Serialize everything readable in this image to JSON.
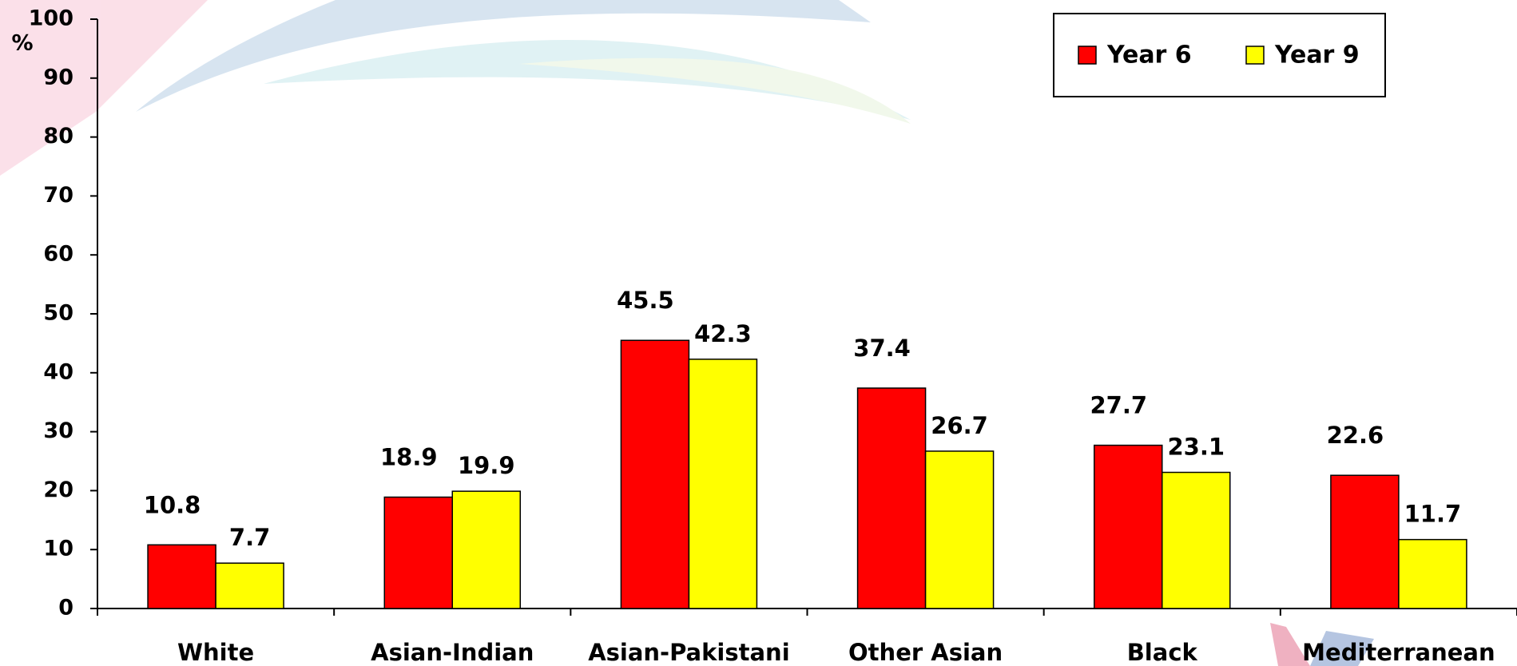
{
  "chart_data": {
    "type": "bar",
    "y_label": "%",
    "categories": [
      "White",
      "Asian-Indian",
      "Asian-Pakistani",
      "Other Asian",
      "Black",
      "Mediterranean"
    ],
    "series": [
      {
        "name": "Year 6",
        "color": "#ff0000",
        "values": [
          10.8,
          18.9,
          45.5,
          37.4,
          27.7,
          22.6
        ]
      },
      {
        "name": "Year 9",
        "color": "#ffff00",
        "values": [
          7.7,
          19.9,
          42.3,
          26.7,
          23.1,
          11.7
        ]
      }
    ],
    "ylim": [
      0,
      100
    ],
    "yticks": [
      0,
      10,
      20,
      30,
      40,
      50,
      60,
      70,
      80,
      90,
      100
    ]
  }
}
